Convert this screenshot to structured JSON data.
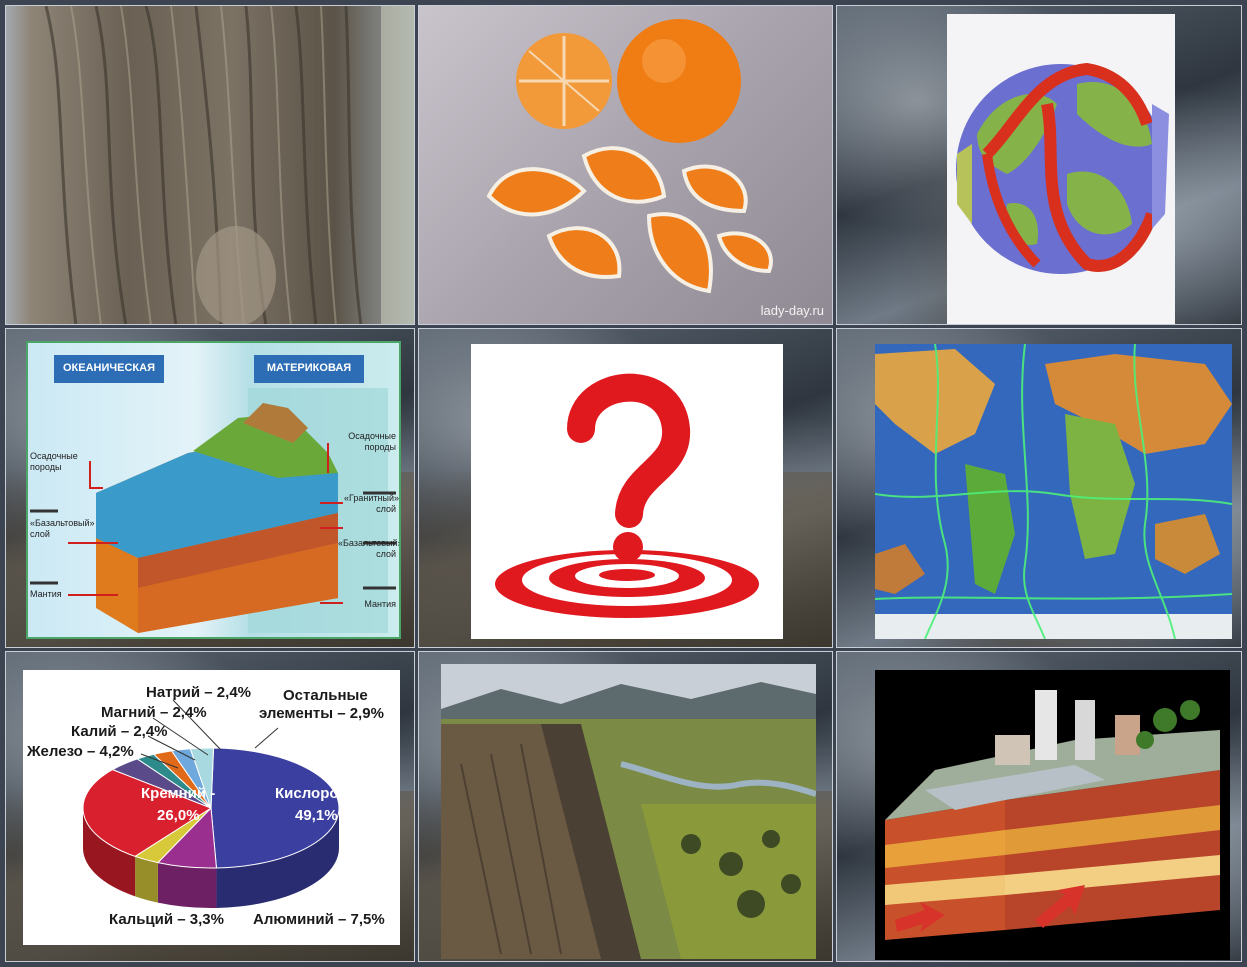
{
  "watermark": "lady-day.ru",
  "crust": {
    "left_header": "ОКЕАНИЧЕСКАЯ",
    "right_header": "МАТЕРИКОВАЯ",
    "left_labels": [
      "Осадочные породы",
      "«Базальтовый» слой",
      "Мантия"
    ],
    "right_labels": [
      "Осадочные породы",
      "«Гранитный» слой",
      "«Базальтовый» слой",
      "Мантия"
    ]
  },
  "chart_data": {
    "type": "pie",
    "categories": [
      "Кислород",
      "Кремний",
      "Алюминий",
      "Кальций",
      "Железо",
      "Калий",
      "Магний",
      "Натрий",
      "Остальные элементы"
    ],
    "values": [
      49.1,
      26.0,
      7.5,
      3.3,
      4.2,
      2.4,
      2.4,
      2.4,
      2.9
    ],
    "labels": {
      "oxygen_name": "Кислород -",
      "oxygen_value": "49,1%",
      "silicon_name": "Кремний -",
      "silicon_value": "26,0%",
      "aluminium": "Алюминий – 7,5%",
      "calcium": "Кальций – 3,3%",
      "iron": "Железо – 4,2%",
      "potassium": "Калий – 2,4%",
      "magnesium": "Магний – 2,4%",
      "sodium": "Натрий – 2,4%",
      "others_line1": "Остальные",
      "others_line2": "элементы – 2,9%"
    },
    "colors": [
      "#3b3fa0",
      "#d8202e",
      "#9b2f8f",
      "#d8c93a",
      "#5a4a8a",
      "#2e8b8b",
      "#e06a1a",
      "#6fa8dc",
      "#a8d8e0"
    ]
  },
  "colors": {
    "cell_border": "#c9ced6",
    "question_red": "#e0191f",
    "map_ocean": "#2f5fb5"
  }
}
